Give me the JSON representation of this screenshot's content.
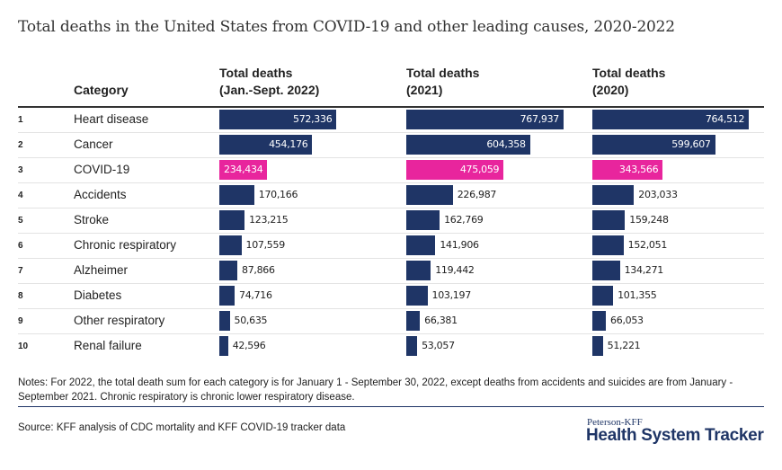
{
  "chart_data": {
    "type": "table",
    "title": "Total deaths in the United States from COVID-19 and other leading causes, 2020-2022",
    "columns": {
      "rank": "",
      "category": "Category",
      "series": [
        {
          "line1": "Total deaths",
          "line2": "(Jan.-Sept. 2022)"
        },
        {
          "line1": "Total deaths",
          "line2": "(2021)"
        },
        {
          "line1": "Total deaths",
          "line2": "(2020)"
        }
      ]
    },
    "rows": [
      {
        "rank": "1",
        "category": "Heart disease",
        "values": [
          572336,
          767937,
          764512
        ],
        "labels": [
          "572,336",
          "767,937",
          "764,512"
        ]
      },
      {
        "rank": "2",
        "category": "Cancer",
        "values": [
          454176,
          604358,
          599607
        ],
        "labels": [
          "454,176",
          "604,358",
          "599,607"
        ]
      },
      {
        "rank": "3",
        "category": "COVID-19",
        "values": [
          234434,
          475059,
          343566
        ],
        "labels": [
          "234,434",
          "475,059",
          "343,566"
        ],
        "highlight": true
      },
      {
        "rank": "4",
        "category": "Accidents",
        "values": [
          170166,
          226987,
          203033
        ],
        "labels": [
          "170,166",
          "226,987",
          "203,033"
        ]
      },
      {
        "rank": "5",
        "category": "Stroke",
        "values": [
          123215,
          162769,
          159248
        ],
        "labels": [
          "123,215",
          "162,769",
          "159,248"
        ]
      },
      {
        "rank": "6",
        "category": "Chronic respiratory",
        "values": [
          107559,
          141906,
          152051
        ],
        "labels": [
          "107,559",
          "141,906",
          "152,051"
        ]
      },
      {
        "rank": "7",
        "category": "Alzheimer",
        "values": [
          87866,
          119442,
          134271
        ],
        "labels": [
          "87,866",
          "119,442",
          "134,271"
        ]
      },
      {
        "rank": "8",
        "category": "Diabetes",
        "values": [
          74716,
          103197,
          101355
        ],
        "labels": [
          "74,716",
          "103,197",
          "101,355"
        ]
      },
      {
        "rank": "9",
        "category": "Other respiratory",
        "values": [
          50635,
          66381,
          66053
        ],
        "labels": [
          "50,635",
          "66,381",
          "66,053"
        ]
      },
      {
        "rank": "10",
        "category": "Renal failure",
        "values": [
          42596,
          53057,
          51221
        ],
        "labels": [
          "42,596",
          "53,057",
          "51,221"
        ]
      }
    ],
    "colors": {
      "bar": "#1f3566",
      "highlight": "#e8259d"
    }
  },
  "notes": "Notes: For 2022, the total death sum for each category is for January 1 - September 30, 2022, except deaths from accidents and suicides are from January - September 2021. Chronic respiratory is chronic lower respiratory disease.",
  "source": "Source: KFF analysis of CDC mortality and KFF COVID-19 tracker data",
  "logo": {
    "line1": "Peterson-KFF",
    "line2": "Health System Tracker"
  }
}
